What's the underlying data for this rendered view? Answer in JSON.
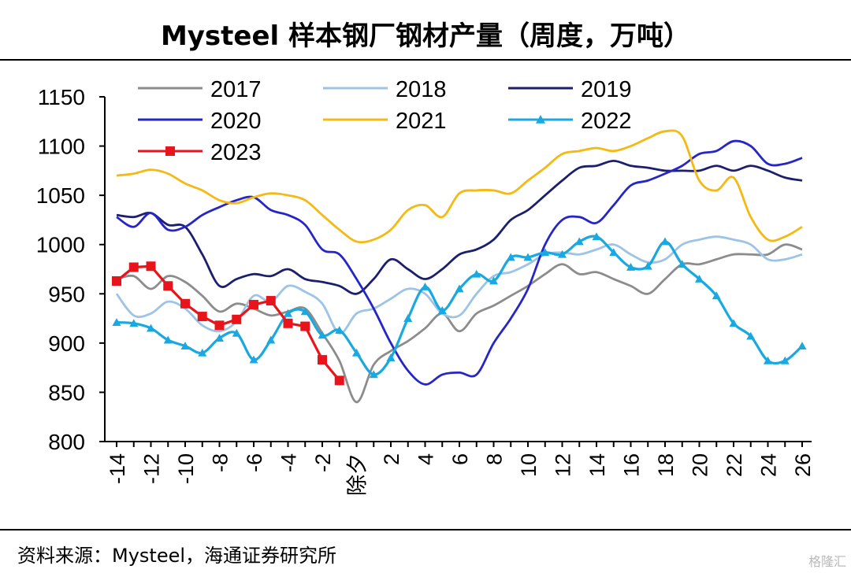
{
  "title": "Mysteel 样本钢厂钢材产量（周度，万吨）",
  "source": "资料来源：Mysteel，海通证券研究所",
  "watermark": "格隆汇",
  "chart_data": {
    "type": "line",
    "title": "Mysteel 样本钢厂钢材产量（周度，万吨）",
    "xlabel": "",
    "ylabel": "",
    "x_categories": [
      "-14",
      "-13",
      "-12",
      "-11",
      "-10",
      "-9",
      "-8",
      "-7",
      "-6",
      "-5",
      "-4",
      "-3",
      "-2",
      "-1",
      "除夕",
      "1",
      "2",
      "3",
      "4",
      "5",
      "6",
      "7",
      "8",
      "9",
      "10",
      "11",
      "12",
      "13",
      "14",
      "15",
      "16",
      "17",
      "18",
      "19",
      "20",
      "21",
      "22",
      "23",
      "24",
      "25",
      "26"
    ],
    "x_tick_labels": [
      "-14",
      "-12",
      "-10",
      "-8",
      "-6",
      "-4",
      "-2",
      "除夕",
      "2",
      "4",
      "6",
      "8",
      "10",
      "12",
      "14",
      "16",
      "18",
      "20",
      "22",
      "24",
      "26"
    ],
    "ylim": [
      800,
      1150
    ],
    "y_ticks": [
      800,
      850,
      900,
      950,
      1000,
      1050,
      1100,
      1150
    ],
    "grid": false,
    "legend_position": "top",
    "series": [
      {
        "name": "2017",
        "color": "#8c8c8c",
        "marker": "none",
        "values": [
          965,
          968,
          955,
          968,
          962,
          948,
          932,
          940,
          935,
          928,
          932,
          935,
          910,
          882,
          840,
          878,
          892,
          902,
          915,
          930,
          912,
          930,
          938,
          948,
          958,
          970,
          980,
          970,
          972,
          965,
          958,
          950,
          965,
          980,
          980,
          985,
          990,
          990,
          990,
          1000,
          995
        ]
      },
      {
        "name": "2018",
        "color": "#9dc3e6",
        "marker": "none",
        "values": [
          950,
          928,
          930,
          942,
          935,
          918,
          912,
          922,
          948,
          942,
          958,
          952,
          940,
          910,
          930,
          935,
          945,
          955,
          950,
          930,
          928,
          950,
          968,
          972,
          980,
          990,
          992,
          990,
          995,
          1000,
          990,
          982,
          985,
          1000,
          1005,
          1008,
          1005,
          1000,
          985,
          985,
          990
        ]
      },
      {
        "name": "2019",
        "color": "#1b1f6e",
        "marker": "none",
        "values": [
          1030,
          1028,
          1032,
          1020,
          1018,
          990,
          958,
          965,
          970,
          968,
          975,
          965,
          962,
          958,
          950,
          965,
          985,
          975,
          965,
          975,
          990,
          995,
          1005,
          1025,
          1035,
          1050,
          1065,
          1078,
          1080,
          1085,
          1080,
          1078,
          1075,
          1075,
          1075,
          1080,
          1075,
          1080,
          1075,
          1068,
          1065
        ]
      },
      {
        "name": "2020",
        "color": "#2626c8",
        "marker": "none",
        "values": [
          1028,
          1018,
          1032,
          1015,
          1018,
          1030,
          1038,
          1045,
          1048,
          1035,
          1030,
          1020,
          995,
          990,
          965,
          935,
          900,
          872,
          858,
          868,
          870,
          868,
          900,
          925,
          955,
          1000,
          1025,
          1028,
          1022,
          1040,
          1060,
          1065,
          1072,
          1080,
          1092,
          1095,
          1105,
          1100,
          1082,
          1082,
          1088
        ]
      },
      {
        "name": "2021",
        "color": "#f5b914",
        "marker": "none",
        "values": [
          1070,
          1072,
          1076,
          1072,
          1062,
          1055,
          1045,
          1042,
          1048,
          1052,
          1050,
          1045,
          1030,
          1015,
          1003,
          1005,
          1015,
          1035,
          1040,
          1028,
          1052,
          1055,
          1055,
          1052,
          1065,
          1078,
          1092,
          1095,
          1098,
          1095,
          1100,
          1108,
          1115,
          1110,
          1065,
          1055,
          1068,
          1028,
          1005,
          1008,
          1018
        ]
      },
      {
        "name": "2022",
        "color": "#19a8e0",
        "marker": "triangle",
        "values": [
          921,
          920,
          915,
          903,
          897,
          890,
          905,
          910,
          883,
          903,
          930,
          932,
          908,
          913,
          890,
          868,
          885,
          925,
          957,
          933,
          955,
          970,
          963,
          987,
          987,
          992,
          990,
          1003,
          1008,
          992,
          977,
          978,
          1003,
          980,
          965,
          948,
          920,
          907,
          882,
          882,
          897
        ]
      },
      {
        "name": "2023",
        "color": "#e8141c",
        "marker": "square",
        "values": [
          963,
          977,
          978,
          958,
          940,
          927,
          918,
          924,
          939,
          943,
          920,
          917,
          883,
          862
        ]
      }
    ]
  }
}
